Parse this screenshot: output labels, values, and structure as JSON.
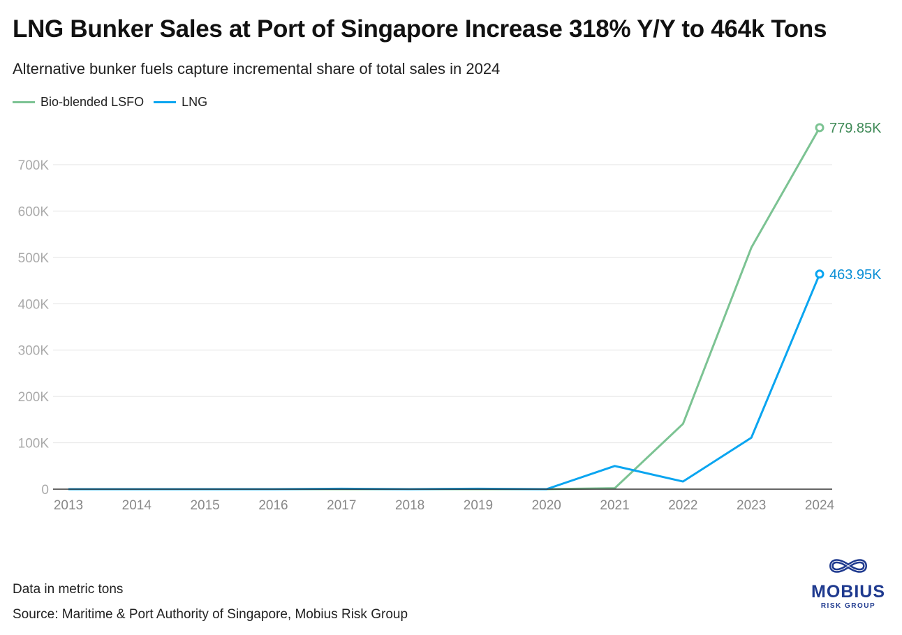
{
  "title": "LNG Bunker Sales at Port of Singapore Increase 318% Y/Y to 464k Tons",
  "subtitle": "Alternative bunker fuels capture incremental share of total sales in 2024",
  "note": "Data in metric tons",
  "source": "Source: Maritime & Port Authority of Singapore, Mobius Risk Group",
  "logo": {
    "name": "MOBIUS",
    "tagline": "RISK GROUP"
  },
  "chart_data": {
    "type": "line",
    "x": [
      "2013",
      "2014",
      "2015",
      "2016",
      "2017",
      "2018",
      "2019",
      "2020",
      "2021",
      "2022",
      "2023",
      "2024"
    ],
    "ylim": [
      0,
      700000
    ],
    "yticks": [
      0,
      100000,
      200000,
      300000,
      400000,
      500000,
      600000,
      700000
    ],
    "ytick_labels": [
      "0",
      "100K",
      "200K",
      "300K",
      "400K",
      "500K",
      "600K",
      "700K"
    ],
    "grid": true,
    "legend": "top-left",
    "series": [
      {
        "name": "Bio-blended LSFO",
        "color": "#7cc393",
        "label_color": "#3f8a57",
        "values": [
          0,
          0,
          0,
          0,
          0,
          0,
          0,
          0,
          2000,
          141000,
          521000,
          779850
        ],
        "end_label": "779.85K"
      },
      {
        "name": "LNG",
        "color": "#0aa5f0",
        "label_color": "#0a8fd6",
        "values": [
          0,
          0,
          0,
          0,
          1000,
          0,
          1000,
          0,
          50000,
          16500,
          111000,
          463950
        ],
        "end_label": "463.95K"
      }
    ]
  }
}
